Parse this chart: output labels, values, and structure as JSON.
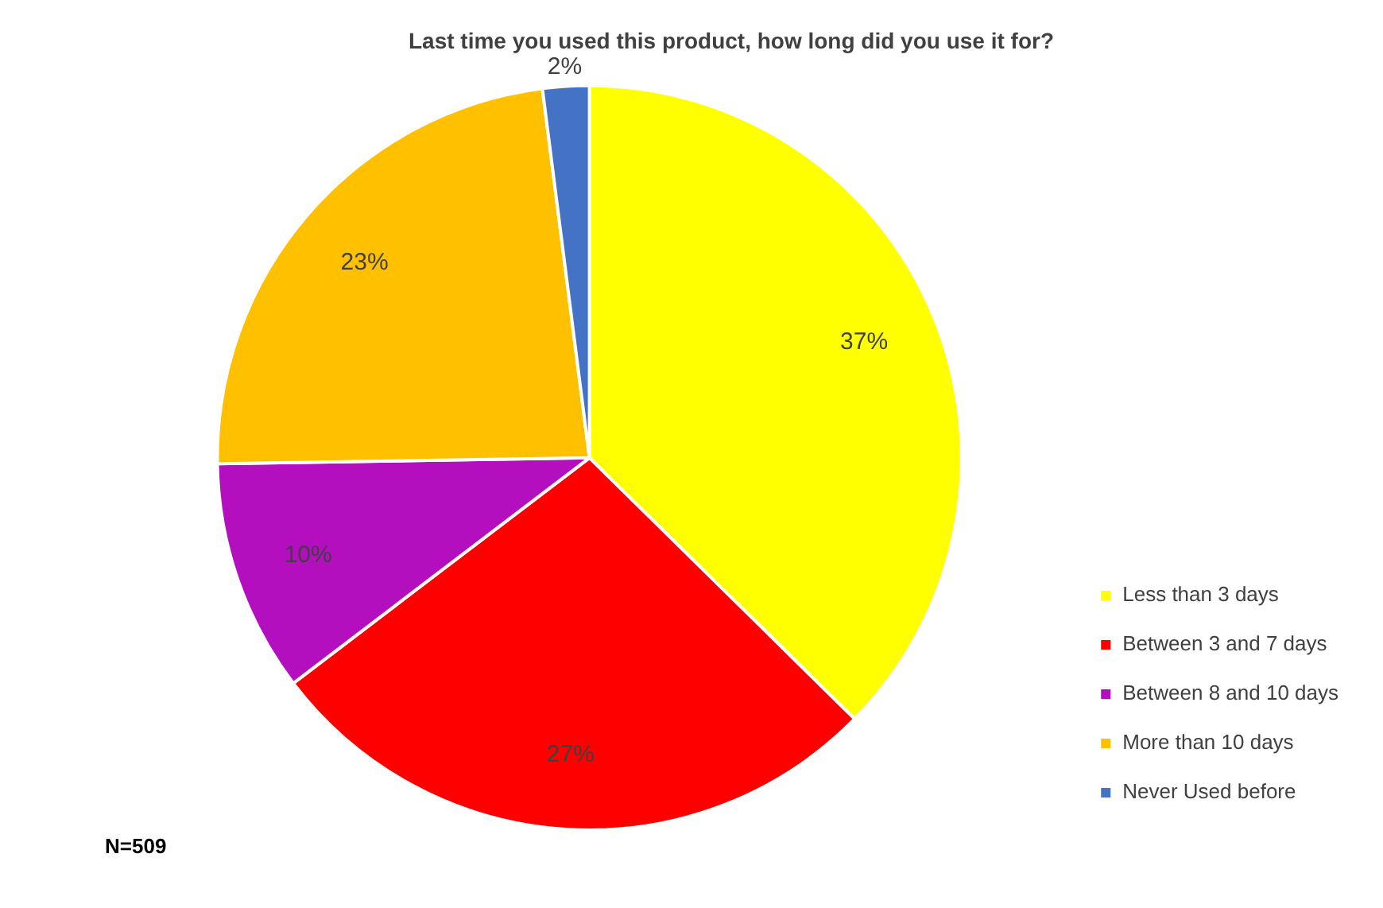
{
  "chart_data": {
    "type": "pie",
    "title": "Last time you used this product, how long did you use it for?",
    "categories": [
      "Less than 3 days",
      "Between 3 and 7 days",
      "Between 8 and 10 days",
      "More than 10 days",
      "Never Used before"
    ],
    "values": [
      37,
      27,
      10,
      23,
      2
    ],
    "colors": [
      "#ffff00",
      "#ff0000",
      "#b30fbf",
      "#ffc000",
      "#4472c4"
    ],
    "value_labels": [
      "37%",
      "27%",
      "10%",
      "23%",
      "2%"
    ],
    "legend": "right",
    "annotations": [
      "N=509"
    ]
  }
}
